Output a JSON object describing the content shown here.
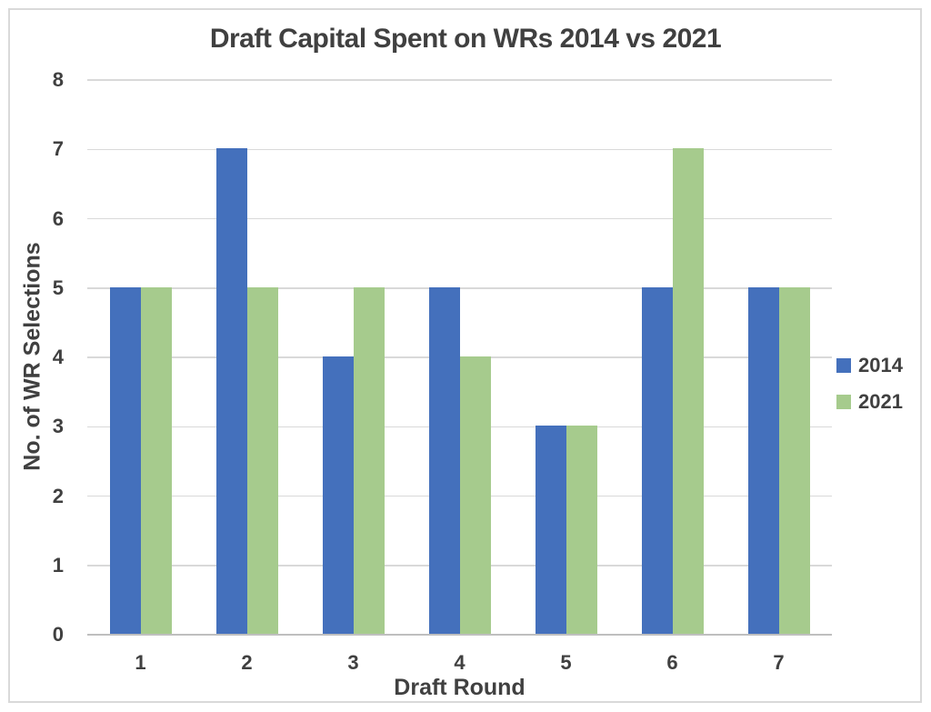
{
  "chart_data": {
    "type": "bar",
    "title": "Draft Capital Spent on WRs 2014 vs 2021",
    "xlabel": "Draft Round",
    "ylabel": "No. of WR Selections",
    "categories": [
      "1",
      "2",
      "3",
      "4",
      "5",
      "6",
      "7"
    ],
    "series": [
      {
        "name": "2014",
        "color": "#4470BC",
        "values": [
          5,
          7,
          4,
          5,
          3,
          5,
          5
        ]
      },
      {
        "name": "2021",
        "color": "#A6CB8D",
        "values": [
          5,
          5,
          5,
          4,
          3,
          7,
          5
        ]
      }
    ],
    "ylim": [
      0,
      8
    ],
    "ytick_step": 1,
    "grid": true,
    "legend_position": "right"
  },
  "style": {
    "text_color": "#404040",
    "gridline_color": "#D9D9D9",
    "axis_line_color": "#BFBFBF",
    "frame_border_color": "#D9D9D9",
    "background": "#FFFFFF"
  }
}
